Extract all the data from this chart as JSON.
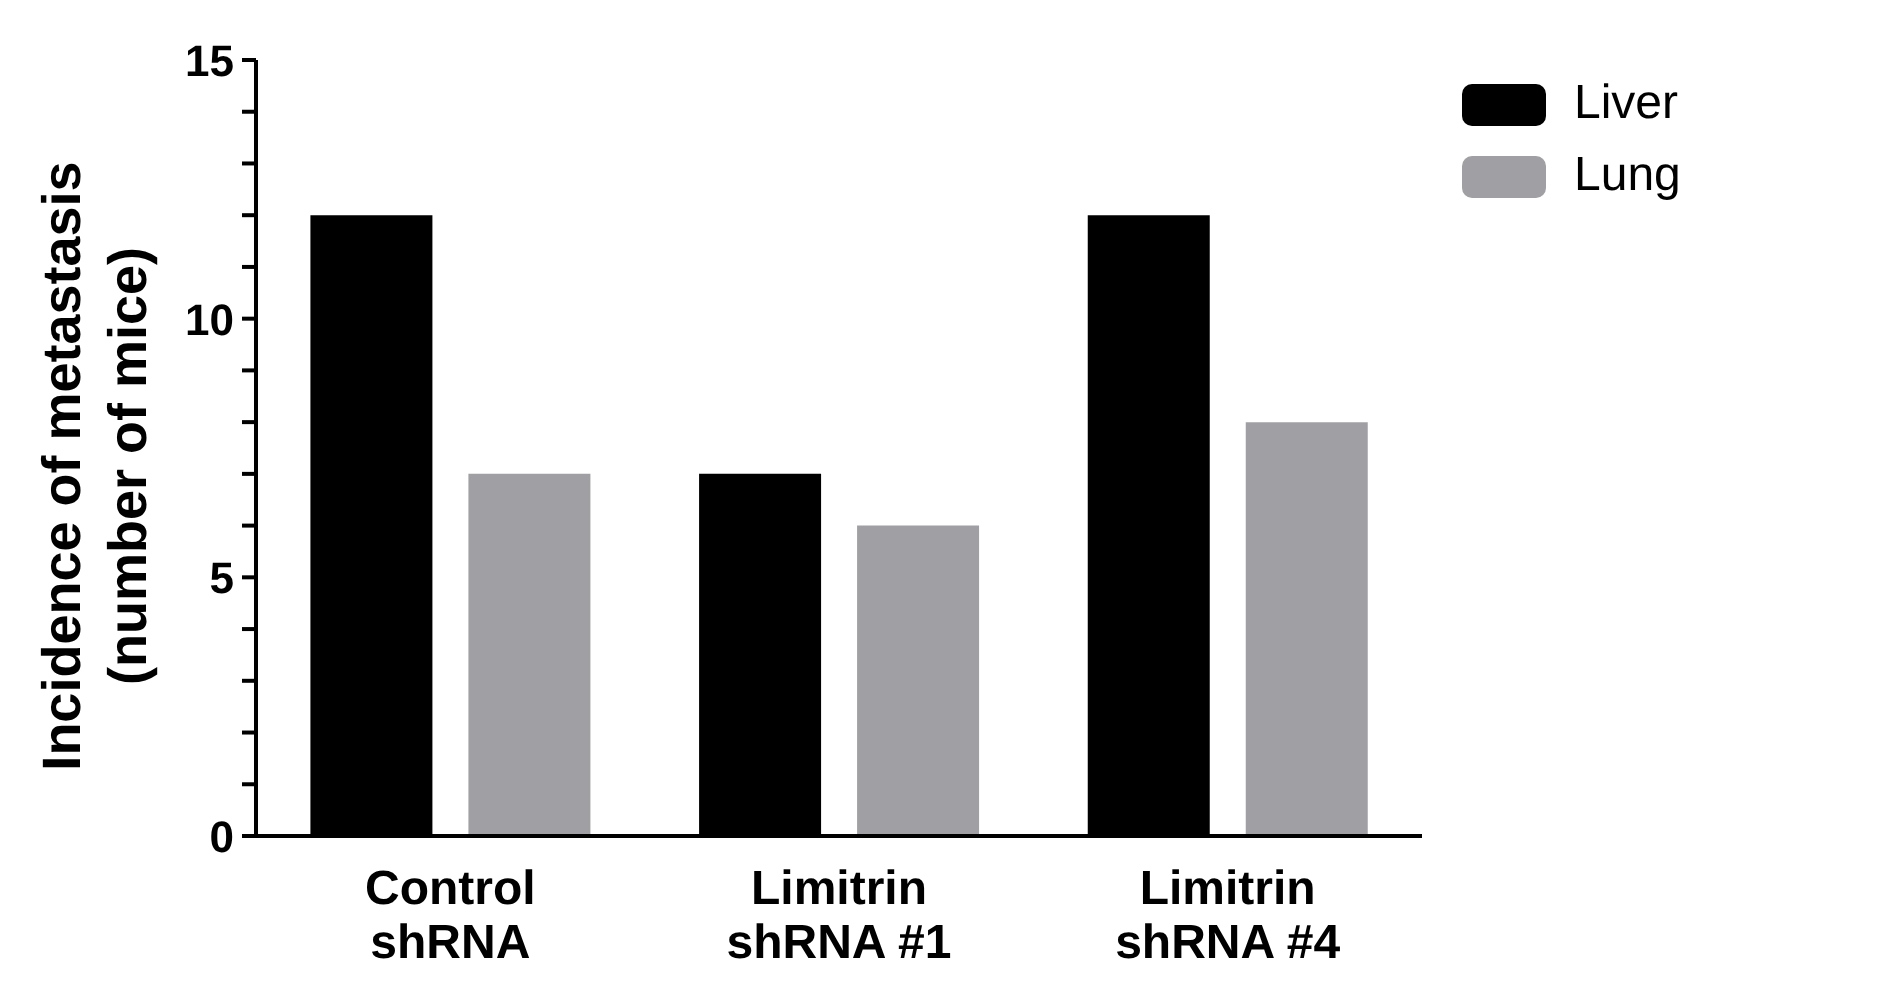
{
  "chart_data": {
    "type": "bar",
    "ylabel": "Incidence of metastasis (number of mice)",
    "categories": [
      "Control shRNA",
      "Limitrin shRNA #1",
      "Limitrin shRNA #4"
    ],
    "series": [
      {
        "name": "Liver",
        "color": "#000000",
        "values": [
          12,
          7,
          12
        ]
      },
      {
        "name": "Lung",
        "color": "#a0a0a4",
        "values": [
          7,
          6,
          8
        ]
      }
    ],
    "ylim": [
      0,
      15
    ],
    "yticks": [
      0,
      {
        "value": 1,
        "label": null
      },
      {
        "value": 2,
        "label": null
      },
      {
        "value": 3,
        "label": null
      },
      {
        "value": 4,
        "label": null
      },
      5,
      {
        "value": 6,
        "label": null
      },
      {
        "value": 7,
        "label": null
      },
      {
        "value": 8,
        "label": null
      },
      {
        "value": 9,
        "label": null
      },
      10,
      {
        "value": 11,
        "label": null
      },
      {
        "value": 12,
        "label": null
      },
      {
        "value": 13,
        "label": null
      },
      {
        "value": 14,
        "label": null
      },
      15
    ],
    "grid": false,
    "legend": "top right"
  }
}
